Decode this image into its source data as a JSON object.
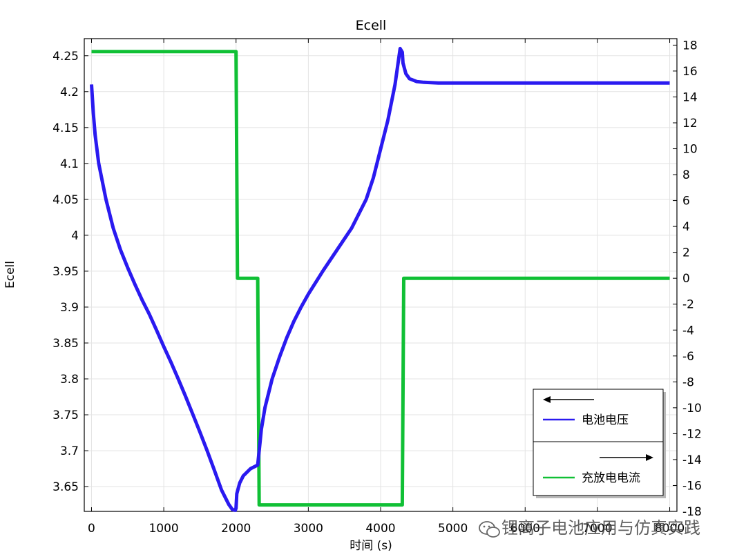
{
  "chart_data": {
    "type": "line",
    "title": "Ecell",
    "xlabel": "时间 (s)",
    "ylabel": "Ecell",
    "xlim": [
      -100,
      8100
    ],
    "ylim_left": [
      3.6155,
      4.2738
    ],
    "ylim_right": [
      -18,
      18.5
    ],
    "x_ticks": [
      0,
      1000,
      2000,
      3000,
      4000,
      5000,
      6000,
      7000,
      8000
    ],
    "x_tick_labels": [
      "0",
      "1000",
      "2000",
      "3000",
      "4000",
      "5000",
      "6000",
      "7000",
      "8000"
    ],
    "left_ticks": [
      3.65,
      3.7,
      3.75,
      3.8,
      3.85,
      3.9,
      3.95,
      4,
      4.05,
      4.1,
      4.15,
      4.2,
      4.25
    ],
    "left_tick_labels": [
      "3.65",
      "3.7",
      "3.75",
      "3.8",
      "3.85",
      "3.9",
      "3.95",
      "4",
      "4.05",
      "4.1",
      "4.15",
      "4.2",
      "4.25"
    ],
    "right_ticks": [
      -18,
      -16,
      -14,
      -12,
      -10,
      -8,
      -6,
      -4,
      -2,
      0,
      2,
      4,
      6,
      8,
      10,
      12,
      14,
      16,
      18
    ],
    "right_tick_labels": [
      "-18",
      "-16",
      "-14",
      "-12",
      "-10",
      "-8",
      "-6",
      "-4",
      "-2",
      "0",
      "2",
      "4",
      "6",
      "8",
      "10",
      "12",
      "14",
      "16",
      "18"
    ],
    "grid": true,
    "legend_position": "bottom-right",
    "series": [
      {
        "name": "电池电压",
        "axis": "left",
        "color": "#2a1af0",
        "x": [
          0,
          25,
          50,
          100,
          200,
          300,
          400,
          500,
          600,
          700,
          800,
          900,
          1000,
          1100,
          1200,
          1300,
          1400,
          1500,
          1600,
          1700,
          1800,
          1900,
          1950,
          1990,
          2000,
          2010,
          2050,
          2100,
          2200,
          2300,
          2350,
          2400,
          2500,
          2600,
          2700,
          2800,
          2900,
          3000,
          3200,
          3400,
          3600,
          3800,
          3900,
          4000,
          4100,
          4200,
          4270,
          4300,
          4310,
          4350,
          4400,
          4500,
          4600,
          4800,
          5000,
          6000,
          7000,
          8000
        ],
        "y": [
          4.21,
          4.17,
          4.14,
          4.1,
          4.05,
          4.01,
          3.98,
          3.955,
          3.932,
          3.91,
          3.89,
          3.868,
          3.845,
          3.823,
          3.8,
          3.776,
          3.751,
          3.726,
          3.7,
          3.673,
          3.645,
          3.625,
          3.618,
          3.617,
          3.62,
          3.64,
          3.655,
          3.665,
          3.675,
          3.68,
          3.73,
          3.76,
          3.8,
          3.83,
          3.857,
          3.88,
          3.9,
          3.918,
          3.95,
          3.98,
          4.01,
          4.05,
          4.08,
          4.12,
          4.16,
          4.21,
          4.26,
          4.255,
          4.24,
          4.225,
          4.218,
          4.214,
          4.213,
          4.212,
          4.212,
          4.212,
          4.212,
          4.212
        ]
      },
      {
        "name": "充放电电流",
        "axis": "right",
        "color": "#10c035",
        "x": [
          0,
          2000,
          2020,
          2300,
          2320,
          4300,
          4320,
          8000
        ],
        "y": [
          17.5,
          17.5,
          0,
          0,
          -17.5,
          -17.5,
          0,
          0
        ]
      }
    ]
  },
  "watermark": "锂离子电池应用与仿真实践"
}
